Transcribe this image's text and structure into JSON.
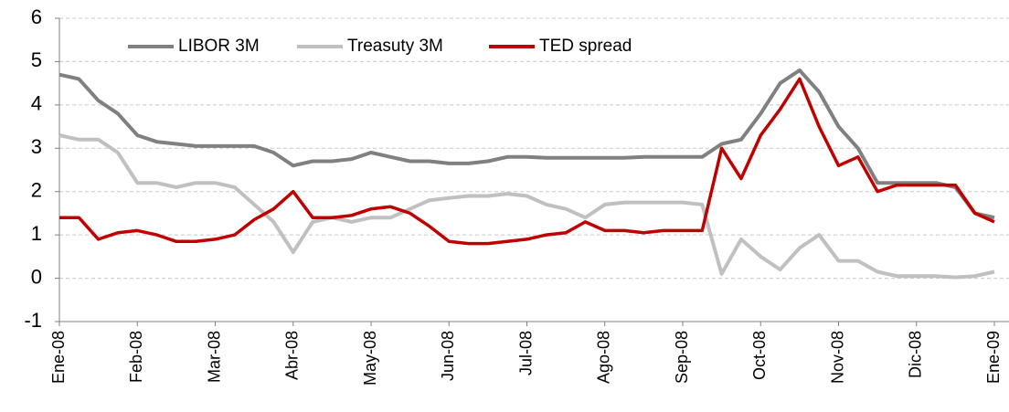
{
  "chart_data": {
    "type": "line",
    "categories": [
      "Ene-08",
      null,
      null,
      null,
      "Feb-08",
      null,
      null,
      null,
      "Mar-08",
      null,
      null,
      null,
      "Abr-08",
      null,
      null,
      null,
      "May-08",
      null,
      null,
      null,
      "Jun-08",
      null,
      null,
      null,
      "Jul-08",
      null,
      null,
      null,
      "Ago-08",
      null,
      null,
      null,
      "Sep-08",
      null,
      null,
      null,
      "Oct-08",
      null,
      null,
      null,
      "Nov-08",
      null,
      null,
      null,
      "Dic-08",
      null,
      null,
      null,
      "Ene-09"
    ],
    "series": [
      {
        "name": "LIBOR 3M",
        "color": "#808080",
        "values": [
          4.7,
          4.6,
          4.1,
          3.8,
          3.3,
          3.15,
          3.1,
          3.05,
          3.05,
          3.05,
          3.05,
          2.9,
          2.6,
          2.7,
          2.7,
          2.75,
          2.9,
          2.8,
          2.7,
          2.7,
          2.65,
          2.65,
          2.7,
          2.8,
          2.8,
          2.78,
          2.78,
          2.78,
          2.78,
          2.78,
          2.8,
          2.8,
          2.8,
          2.8,
          3.1,
          3.2,
          3.8,
          4.5,
          4.8,
          4.3,
          3.5,
          3.0,
          2.2,
          2.2,
          2.2,
          2.2,
          2.1,
          1.5,
          1.4
        ]
      },
      {
        "name": "Treasuty 3M",
        "color": "#c0c0c0",
        "values": [
          3.3,
          3.2,
          3.2,
          2.9,
          2.2,
          2.2,
          2.1,
          2.2,
          2.2,
          2.1,
          1.7,
          1.3,
          0.6,
          1.3,
          1.4,
          1.3,
          1.4,
          1.4,
          1.6,
          1.8,
          1.85,
          1.9,
          1.9,
          1.95,
          1.9,
          1.7,
          1.6,
          1.4,
          1.7,
          1.75,
          1.75,
          1.75,
          1.75,
          1.7,
          0.1,
          0.9,
          0.5,
          0.2,
          0.7,
          1.0,
          0.4,
          0.4,
          0.15,
          0.05,
          0.05,
          0.05,
          0.02,
          0.05,
          0.15
        ]
      },
      {
        "name": "TED spread",
        "color": "#c00000",
        "values": [
          1.4,
          1.4,
          0.9,
          1.05,
          1.1,
          1.0,
          0.85,
          0.85,
          0.9,
          1.0,
          1.35,
          1.6,
          2.0,
          1.4,
          1.4,
          1.45,
          1.6,
          1.65,
          1.5,
          1.2,
          0.85,
          0.8,
          0.8,
          0.85,
          0.9,
          1.0,
          1.05,
          1.3,
          1.1,
          1.1,
          1.05,
          1.1,
          1.1,
          1.1,
          3.0,
          2.3,
          3.3,
          3.9,
          4.6,
          3.5,
          2.6,
          2.8,
          2.0,
          2.15,
          2.15,
          2.15,
          2.15,
          1.5,
          1.3
        ]
      }
    ],
    "ylim": [
      -1,
      6
    ],
    "yticks": [
      -1,
      0,
      1,
      2,
      3,
      4,
      5,
      6
    ],
    "grid": true,
    "legend": "top"
  }
}
